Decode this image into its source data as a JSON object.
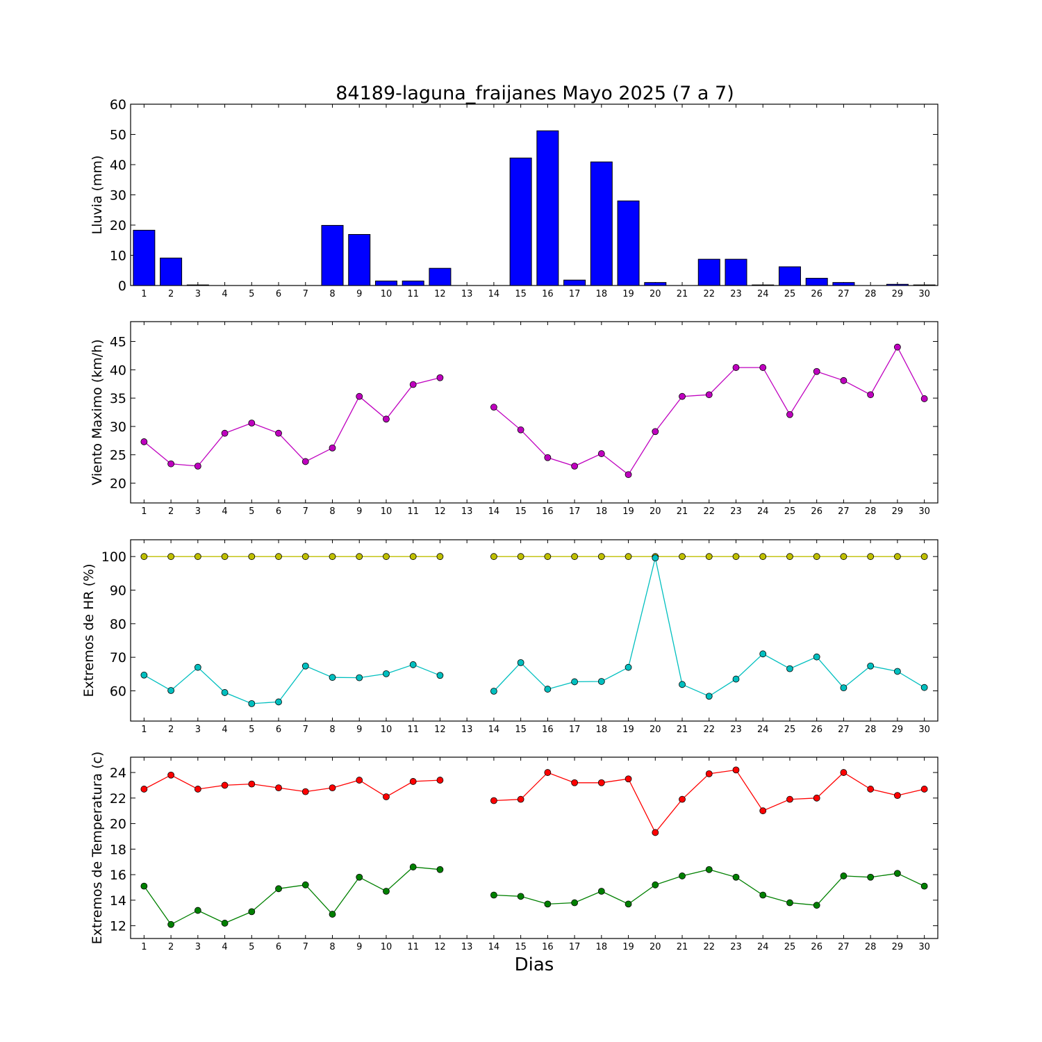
{
  "figure": {
    "title": "84189-laguna_fraijanes Mayo 2025  (7 a 7)",
    "xlabel": "Dias"
  },
  "chart_data": [
    {
      "type": "bar",
      "ylabel": "Lluvia (mm)",
      "ylim": [
        0,
        60
      ],
      "yticks": [
        0,
        10,
        20,
        30,
        40,
        50,
        60
      ],
      "xlim": [
        0.5,
        30.5
      ],
      "x": [
        1,
        2,
        3,
        4,
        5,
        6,
        7,
        8,
        9,
        10,
        11,
        12,
        13,
        14,
        15,
        16,
        17,
        18,
        19,
        20,
        21,
        22,
        23,
        24,
        25,
        26,
        27,
        28,
        29,
        30
      ],
      "values": [
        18.3,
        9.1,
        0.2,
        0,
        0,
        0,
        0,
        19.9,
        16.9,
        1.5,
        1.5,
        5.7,
        0,
        0,
        42.2,
        51.2,
        1.8,
        40.9,
        28.0,
        1.0,
        0,
        8.7,
        8.7,
        0.2,
        6.2,
        2.4,
        1.0,
        0,
        0.4,
        0.2
      ],
      "bar_color": "#0000ff"
    },
    {
      "type": "line",
      "ylabel": "Viento Maximo (km/h)",
      "ylim": [
        16.5,
        48.5
      ],
      "yticks": [
        20,
        25,
        30,
        35,
        40,
        45
      ],
      "xlim": [
        0.5,
        30.5
      ],
      "x": [
        1,
        2,
        3,
        4,
        5,
        6,
        7,
        8,
        9,
        10,
        11,
        12,
        13,
        14,
        15,
        16,
        17,
        18,
        19,
        20,
        21,
        22,
        23,
        24,
        25,
        26,
        27,
        28,
        29,
        30
      ],
      "series": [
        {
          "color": "#bf00bf",
          "values": [
            27.3,
            23.4,
            23.0,
            28.8,
            30.6,
            28.8,
            23.8,
            26.2,
            35.3,
            31.3,
            37.4,
            38.6,
            null,
            33.4,
            29.4,
            24.5,
            23.0,
            25.2,
            21.5,
            29.1,
            35.3,
            35.6,
            40.4,
            40.4,
            32.1,
            39.7,
            38.1,
            35.6,
            44.0,
            34.9
          ]
        }
      ]
    },
    {
      "type": "line",
      "ylabel": "Extremos de HR (%)",
      "ylim": [
        51,
        105
      ],
      "yticks": [
        60,
        70,
        80,
        90,
        100
      ],
      "xlim": [
        0.5,
        30.5
      ],
      "x": [
        1,
        2,
        3,
        4,
        5,
        6,
        7,
        8,
        9,
        10,
        11,
        12,
        13,
        14,
        15,
        16,
        17,
        18,
        19,
        20,
        21,
        22,
        23,
        24,
        25,
        26,
        27,
        28,
        29,
        30
      ],
      "series": [
        {
          "color": "#bfbf00",
          "values": [
            100,
            100,
            100,
            100,
            100,
            100,
            100,
            100,
            100,
            100,
            100,
            100,
            null,
            100,
            100,
            100,
            100,
            100,
            100,
            100,
            100,
            100,
            100,
            100,
            100,
            100,
            100,
            100,
            100,
            100
          ]
        },
        {
          "color": "#00bfbf",
          "values": [
            64.7,
            60.1,
            67.0,
            59.5,
            56.2,
            56.7,
            67.4,
            64.0,
            63.9,
            65.1,
            67.8,
            64.6,
            null,
            59.9,
            68.4,
            60.5,
            62.7,
            62.8,
            67.0,
            99.6,
            61.9,
            58.4,
            63.5,
            71.0,
            66.6,
            70.1,
            60.9,
            67.4,
            65.8,
            61.0
          ]
        }
      ]
    },
    {
      "type": "line",
      "ylabel": "Extremos de Temperatura (c)",
      "ylim": [
        11,
        25.2
      ],
      "yticks": [
        12,
        14,
        16,
        18,
        20,
        22,
        24
      ],
      "xlim": [
        0.5,
        30.5
      ],
      "x": [
        1,
        2,
        3,
        4,
        5,
        6,
        7,
        8,
        9,
        10,
        11,
        12,
        13,
        14,
        15,
        16,
        17,
        18,
        19,
        20,
        21,
        22,
        23,
        24,
        25,
        26,
        27,
        28,
        29,
        30
      ],
      "series": [
        {
          "color": "#ff0000",
          "values": [
            22.7,
            23.8,
            22.7,
            23.0,
            23.1,
            22.8,
            22.5,
            22.8,
            23.4,
            22.1,
            23.3,
            23.4,
            null,
            21.8,
            21.9,
            24.0,
            23.2,
            23.2,
            23.5,
            19.3,
            21.9,
            23.9,
            24.2,
            21.0,
            21.9,
            22.0,
            24.0,
            22.7,
            22.2,
            22.7
          ]
        },
        {
          "color": "#008000",
          "values": [
            15.1,
            12.1,
            13.2,
            12.2,
            13.1,
            14.9,
            15.2,
            12.9,
            15.8,
            14.7,
            16.6,
            16.4,
            null,
            14.4,
            14.3,
            13.7,
            13.8,
            14.7,
            13.7,
            15.2,
            15.9,
            16.4,
            15.8,
            14.4,
            13.8,
            13.6,
            15.9,
            15.8,
            16.1,
            15.1
          ]
        }
      ]
    }
  ]
}
